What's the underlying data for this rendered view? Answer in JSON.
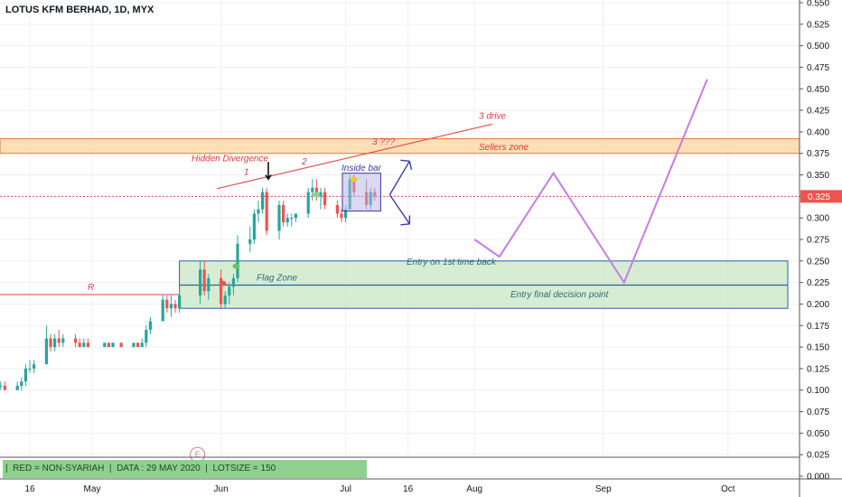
{
  "title": "LOTUS KFM BERHAD, 1D, MYX",
  "bottom_info": "|  RED = NON-SYARIAH  |  DATA : 29 MAY 2020  |  LOTSIZE = 150",
  "price_label": "0.325",
  "chart_data": {
    "type": "candlestick",
    "ylim": [
      0,
      0.55
    ],
    "y_ticks": [
      "0.550",
      "0.525",
      "0.500",
      "0.475",
      "0.450",
      "0.425",
      "0.400",
      "0.375",
      "0.350",
      "0.325",
      "0.300",
      "0.275",
      "0.250",
      "0.225",
      "0.200",
      "0.175",
      "0.150",
      "0.125",
      "0.100",
      "0.075",
      "0.050",
      "0.025",
      "0.000"
    ],
    "x_labels": [
      {
        "text": "16",
        "date": "2020-04-16"
      },
      {
        "text": "May",
        "date": "2020-05-01"
      },
      {
        "text": "Jun",
        "date": "2020-06-01"
      },
      {
        "text": "Jul",
        "date": "2020-07-01"
      },
      {
        "text": "16",
        "date": "2020-07-16"
      },
      {
        "text": "Aug",
        "date": "2020-08-01"
      },
      {
        "text": "Sep",
        "date": "2020-09-01"
      },
      {
        "text": "Oct",
        "date": "2020-10-01"
      }
    ],
    "candles": [
      {
        "date": "2020-04-09",
        "o": 0.105,
        "h": 0.11,
        "l": 0.1,
        "c": 0.105
      },
      {
        "date": "2020-04-10",
        "o": 0.105,
        "h": 0.11,
        "l": 0.1,
        "c": 0.1
      },
      {
        "date": "2020-04-13",
        "o": 0.1,
        "h": 0.11,
        "l": 0.1,
        "c": 0.105
      },
      {
        "date": "2020-04-14",
        "o": 0.105,
        "h": 0.115,
        "l": 0.1,
        "c": 0.11
      },
      {
        "date": "2020-04-15",
        "o": 0.11,
        "h": 0.13,
        "l": 0.105,
        "c": 0.125
      },
      {
        "date": "2020-04-16",
        "o": 0.125,
        "h": 0.135,
        "l": 0.12,
        "c": 0.125
      },
      {
        "date": "2020-04-17",
        "o": 0.125,
        "h": 0.135,
        "l": 0.12,
        "c": 0.13
      },
      {
        "date": "2020-04-20",
        "o": 0.13,
        "h": 0.175,
        "l": 0.13,
        "c": 0.16
      },
      {
        "date": "2020-04-21",
        "o": 0.16,
        "h": 0.165,
        "l": 0.145,
        "c": 0.15
      },
      {
        "date": "2020-04-22",
        "o": 0.15,
        "h": 0.165,
        "l": 0.145,
        "c": 0.16
      },
      {
        "date": "2020-04-23",
        "o": 0.16,
        "h": 0.17,
        "l": 0.15,
        "c": 0.155
      },
      {
        "date": "2020-04-24",
        "o": 0.155,
        "h": 0.165,
        "l": 0.15,
        "c": 0.16
      },
      {
        "date": "2020-04-27",
        "o": 0.16,
        "h": 0.165,
        "l": 0.15,
        "c": 0.155
      },
      {
        "date": "2020-04-28",
        "o": 0.155,
        "h": 0.16,
        "l": 0.15,
        "c": 0.15
      },
      {
        "date": "2020-04-29",
        "o": 0.15,
        "h": 0.16,
        "l": 0.15,
        "c": 0.155
      },
      {
        "date": "2020-04-30",
        "o": 0.155,
        "h": 0.16,
        "l": 0.15,
        "c": 0.15
      },
      {
        "date": "2020-05-04",
        "o": 0.15,
        "h": 0.155,
        "l": 0.15,
        "c": 0.155
      },
      {
        "date": "2020-05-05",
        "o": 0.155,
        "h": 0.155,
        "l": 0.15,
        "c": 0.15
      },
      {
        "date": "2020-05-06",
        "o": 0.15,
        "h": 0.155,
        "l": 0.15,
        "c": 0.155
      },
      {
        "date": "2020-05-08",
        "o": 0.155,
        "h": 0.155,
        "l": 0.15,
        "c": 0.15
      },
      {
        "date": "2020-05-11",
        "o": 0.15,
        "h": 0.155,
        "l": 0.15,
        "c": 0.155
      },
      {
        "date": "2020-05-12",
        "o": 0.155,
        "h": 0.155,
        "l": 0.15,
        "c": 0.15
      },
      {
        "date": "2020-05-13",
        "o": 0.15,
        "h": 0.16,
        "l": 0.15,
        "c": 0.155
      },
      {
        "date": "2020-05-14",
        "o": 0.155,
        "h": 0.175,
        "l": 0.15,
        "c": 0.17
      },
      {
        "date": "2020-05-15",
        "o": 0.17,
        "h": 0.185,
        "l": 0.165,
        "c": 0.18
      },
      {
        "date": "2020-05-18",
        "o": 0.18,
        "h": 0.21,
        "l": 0.18,
        "c": 0.205
      },
      {
        "date": "2020-05-19",
        "o": 0.205,
        "h": 0.21,
        "l": 0.19,
        "c": 0.195
      },
      {
        "date": "2020-05-20",
        "o": 0.195,
        "h": 0.21,
        "l": 0.185,
        "c": 0.2
      },
      {
        "date": "2020-05-21",
        "o": 0.2,
        "h": 0.205,
        "l": 0.19,
        "c": 0.195
      },
      {
        "date": "2020-05-22",
        "o": 0.195,
        "h": 0.215,
        "l": 0.19,
        "c": 0.21
      },
      {
        "date": "2020-05-27",
        "o": 0.21,
        "h": 0.25,
        "l": 0.2,
        "c": 0.24
      },
      {
        "date": "2020-05-28",
        "o": 0.24,
        "h": 0.25,
        "l": 0.21,
        "c": 0.215
      },
      {
        "date": "2020-05-29",
        "o": 0.215,
        "h": 0.235,
        "l": 0.205,
        "c": 0.23
      },
      {
        "date": "2020-06-01",
        "o": 0.23,
        "h": 0.24,
        "l": 0.195,
        "c": 0.2
      },
      {
        "date": "2020-06-02",
        "o": 0.2,
        "h": 0.215,
        "l": 0.195,
        "c": 0.21
      },
      {
        "date": "2020-06-03",
        "o": 0.21,
        "h": 0.225,
        "l": 0.2,
        "c": 0.22
      },
      {
        "date": "2020-06-04",
        "o": 0.22,
        "h": 0.235,
        "l": 0.21,
        "c": 0.23
      },
      {
        "date": "2020-06-05",
        "o": 0.23,
        "h": 0.28,
        "l": 0.225,
        "c": 0.27
      },
      {
        "date": "2020-06-08",
        "o": 0.27,
        "h": 0.29,
        "l": 0.26,
        "c": 0.275
      },
      {
        "date": "2020-06-09",
        "o": 0.275,
        "h": 0.31,
        "l": 0.27,
        "c": 0.305
      },
      {
        "date": "2020-06-10",
        "o": 0.305,
        "h": 0.32,
        "l": 0.295,
        "c": 0.31
      },
      {
        "date": "2020-06-11",
        "o": 0.31,
        "h": 0.335,
        "l": 0.305,
        "c": 0.33
      },
      {
        "date": "2020-06-12",
        "o": 0.33,
        "h": 0.335,
        "l": 0.28,
        "c": 0.285
      },
      {
        "date": "2020-06-15",
        "o": 0.285,
        "h": 0.32,
        "l": 0.275,
        "c": 0.315
      },
      {
        "date": "2020-06-16",
        "o": 0.315,
        "h": 0.32,
        "l": 0.29,
        "c": 0.295
      },
      {
        "date": "2020-06-17",
        "o": 0.295,
        "h": 0.305,
        "l": 0.29,
        "c": 0.3
      },
      {
        "date": "2020-06-18",
        "o": 0.3,
        "h": 0.305,
        "l": 0.29,
        "c": 0.3
      },
      {
        "date": "2020-06-19",
        "o": 0.3,
        "h": 0.305,
        "l": 0.295,
        "c": 0.305
      },
      {
        "date": "2020-06-22",
        "o": 0.305,
        "h": 0.335,
        "l": 0.3,
        "c": 0.33
      },
      {
        "date": "2020-06-23",
        "o": 0.33,
        "h": 0.345,
        "l": 0.32,
        "c": 0.335
      },
      {
        "date": "2020-06-24",
        "o": 0.335,
        "h": 0.345,
        "l": 0.32,
        "c": 0.325
      },
      {
        "date": "2020-06-25",
        "o": 0.325,
        "h": 0.335,
        "l": 0.31,
        "c": 0.33
      },
      {
        "date": "2020-06-26",
        "o": 0.33,
        "h": 0.335,
        "l": 0.31,
        "c": 0.315
      },
      {
        "date": "2020-06-29",
        "o": 0.315,
        "h": 0.32,
        "l": 0.3,
        "c": 0.305
      },
      {
        "date": "2020-06-30",
        "o": 0.305,
        "h": 0.31,
        "l": 0.295,
        "c": 0.3
      },
      {
        "date": "2020-07-01",
        "o": 0.3,
        "h": 0.315,
        "l": 0.295,
        "c": 0.31
      },
      {
        "date": "2020-07-02",
        "o": 0.31,
        "h": 0.35,
        "l": 0.31,
        "c": 0.345
      },
      {
        "date": "2020-07-03",
        "o": 0.345,
        "h": 0.35,
        "l": 0.325,
        "c": 0.33
      },
      {
        "date": "2020-07-06",
        "o": 0.33,
        "h": 0.345,
        "l": 0.31,
        "c": 0.315
      },
      {
        "date": "2020-07-07",
        "o": 0.315,
        "h": 0.335,
        "l": 0.31,
        "c": 0.33
      },
      {
        "date": "2020-07-08",
        "o": 0.33,
        "h": 0.335,
        "l": 0.32,
        "c": 0.325
      }
    ],
    "current_price": 0.325,
    "zones": [
      {
        "label": "Sellers zone",
        "y_low": 0.375,
        "y_high": 0.392
      },
      {
        "label": "Flag Zone",
        "y_low": 0.195,
        "y_high": 0.25
      },
      {
        "label": "Entry on 1st time back",
        "y": 0.25
      },
      {
        "label": "Entry final decision point",
        "y": 0.222
      }
    ],
    "annotations": [
      "Hidden Divergence",
      "1",
      "2",
      "3 drive",
      "3 ???",
      "Inside bar",
      "R",
      "E"
    ],
    "projection": [
      {
        "date": "2020-08-01",
        "y": 0.275
      },
      {
        "date": "2020-08-07",
        "y": 0.255
      },
      {
        "date": "2020-08-20",
        "y": 0.352
      },
      {
        "date": "2020-09-06",
        "y": 0.225
      },
      {
        "date": "2020-09-26",
        "y": 0.461
      }
    ]
  }
}
